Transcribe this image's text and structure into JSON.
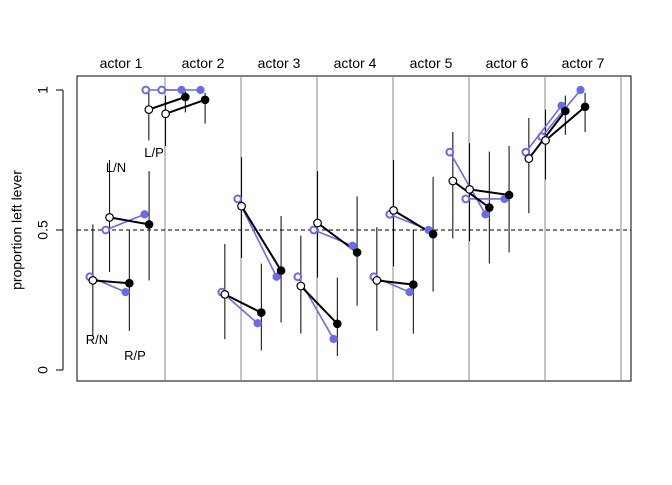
{
  "chart_data": {
    "type": "scatter",
    "ylabel": "proportion left lever",
    "ylim": [
      0,
      1
    ],
    "yticks": [
      {
        "value": 0,
        "label": "0"
      },
      {
        "value": 0.5,
        "label": "0.5"
      },
      {
        "value": 1,
        "label": "1"
      }
    ],
    "reference_line": {
      "y": 0.5,
      "style": "dashed"
    },
    "panels": [
      {
        "label": "actor 1",
        "observed": [
          0.333,
          0.5,
          0.278,
          0.556
        ],
        "predicted": [
          0.32,
          0.545,
          0.31,
          0.52
        ],
        "ci": [
          [
            0.12,
            0.52
          ],
          [
            0.35,
            0.75
          ],
          [
            0.14,
            0.5
          ],
          [
            0.32,
            0.71
          ]
        ]
      },
      {
        "label": "actor 2",
        "observed": [
          1.0,
          1.0,
          1.0,
          1.0
        ],
        "predicted": [
          0.93,
          0.915,
          0.975,
          0.965
        ],
        "ci": [
          [
            0.82,
            0.99
          ],
          [
            0.8,
            0.98
          ],
          [
            0.92,
            0.995
          ],
          [
            0.88,
            0.99
          ]
        ]
      },
      {
        "label": "actor 3",
        "observed": [
          0.278,
          0.611,
          0.167,
          0.333
        ],
        "predicted": [
          0.27,
          0.585,
          0.205,
          0.355
        ],
        "ci": [
          [
            0.11,
            0.45
          ],
          [
            0.4,
            0.76
          ],
          [
            0.07,
            0.38
          ],
          [
            0.17,
            0.55
          ]
        ]
      },
      {
        "label": "actor 4",
        "observed": [
          0.333,
          0.5,
          0.111,
          0.444
        ],
        "predicted": [
          0.3,
          0.525,
          0.165,
          0.42
        ],
        "ci": [
          [
            0.13,
            0.48
          ],
          [
            0.33,
            0.71
          ],
          [
            0.05,
            0.33
          ],
          [
            0.23,
            0.62
          ]
        ]
      },
      {
        "label": "actor 5",
        "observed": [
          0.333,
          0.556,
          0.278,
          0.5
        ],
        "predicted": [
          0.32,
          0.57,
          0.305,
          0.485
        ],
        "ci": [
          [
            0.14,
            0.51
          ],
          [
            0.37,
            0.75
          ],
          [
            0.13,
            0.5
          ],
          [
            0.28,
            0.69
          ]
        ]
      },
      {
        "label": "actor 6",
        "observed": [
          0.778,
          0.611,
          0.556,
          0.611
        ],
        "predicted": [
          0.675,
          0.645,
          0.58,
          0.625
        ],
        "ci": [
          [
            0.47,
            0.85
          ],
          [
            0.46,
            0.81
          ],
          [
            0.38,
            0.78
          ],
          [
            0.42,
            0.8
          ]
        ]
      },
      {
        "label": "actor 7",
        "observed": [
          0.778,
          0.833,
          0.944,
          1.0
        ],
        "predicted": [
          0.755,
          0.82,
          0.925,
          0.94
        ],
        "ci": [
          [
            0.56,
            0.9
          ],
          [
            0.68,
            0.93
          ],
          [
            0.84,
            0.98
          ],
          [
            0.85,
            0.99
          ]
        ]
      }
    ],
    "annotations": {
      "rn": "R/N",
      "ln": "L/N",
      "rp": "R/P",
      "lp": "L/P"
    },
    "colors": {
      "observed": "#6a6aee",
      "line": "#000000",
      "divider": "#888888"
    }
  }
}
